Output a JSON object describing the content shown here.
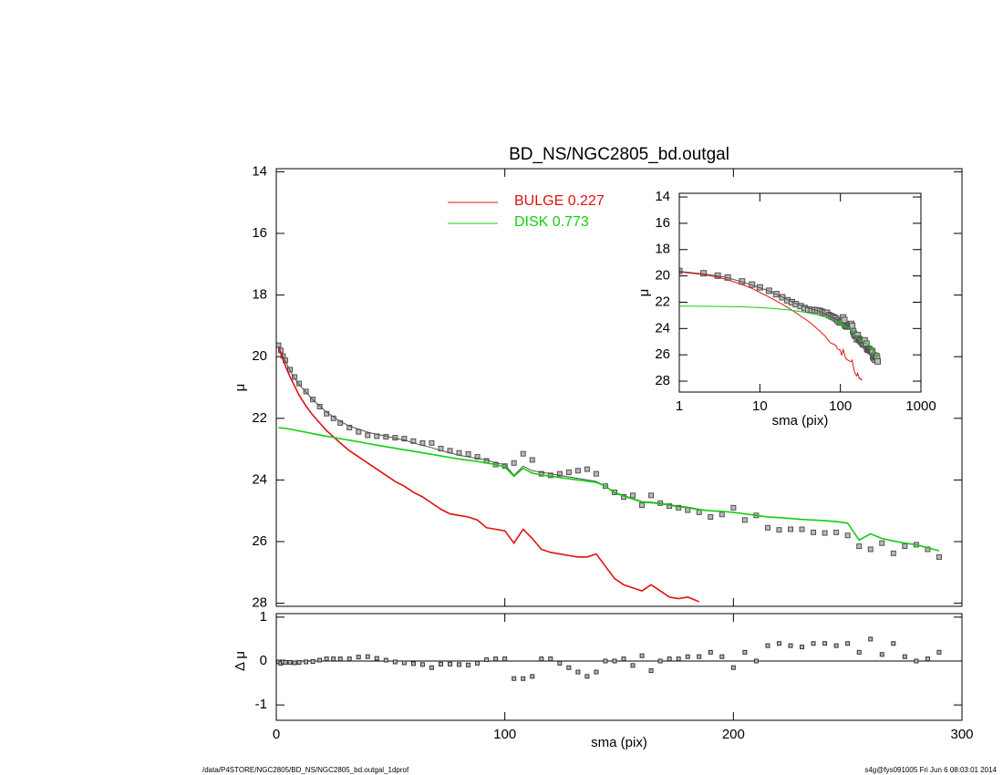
{
  "footer_left": "/data/P4STORE/NGC2805/BD_NS/NGC2805_bd.outgal_1dprof",
  "footer_right": "s4g@fys091005  Fri Jun  6 08:03:01 2014",
  "chart_data": [
    {
      "type": "line",
      "title": "BD_NS/NGC2805_bd.outgal",
      "ylabel": "μ",
      "yreverse": true,
      "legend": "upper-center",
      "xlim": [
        0,
        300
      ],
      "ylim": [
        13.9,
        28.1
      ],
      "yticks": [
        14,
        16,
        18,
        20,
        22,
        24,
        26,
        28
      ],
      "x": [
        1,
        2,
        3,
        4,
        6,
        8,
        10,
        13,
        16,
        19,
        22,
        25,
        28,
        32,
        36,
        40,
        44,
        48,
        52,
        56,
        60,
        64,
        68,
        72,
        76,
        80,
        84,
        88,
        92,
        96,
        100,
        104,
        108,
        112,
        116,
        120,
        124,
        128,
        132,
        136,
        140,
        144,
        148,
        152,
        156,
        160,
        164,
        168,
        172,
        176,
        180,
        185,
        190,
        195,
        200,
        205,
        210,
        215,
        220,
        225,
        230,
        235,
        240,
        245,
        250,
        255,
        260,
        265,
        270,
        275,
        280,
        285,
        290
      ],
      "series": [
        {
          "color": "#505050",
          "marker": "square",
          "values": [
            19.63,
            19.8,
            19.98,
            20.12,
            20.42,
            20.66,
            20.87,
            21.13,
            21.39,
            21.62,
            21.85,
            22.0,
            22.15,
            22.3,
            22.44,
            22.55,
            22.58,
            22.6,
            22.63,
            22.66,
            22.74,
            22.8,
            22.8,
            22.98,
            23.05,
            23.12,
            23.16,
            23.25,
            23.38,
            23.5,
            23.55,
            23.45,
            23.15,
            23.35,
            23.8,
            23.85,
            23.8,
            23.75,
            23.7,
            23.65,
            23.8,
            24.2,
            24.4,
            24.55,
            24.5,
            24.82,
            24.5,
            24.75,
            24.85,
            24.9,
            24.98,
            25.05,
            25.2,
            25.12,
            24.9,
            25.3,
            25.15,
            25.55,
            25.62,
            25.6,
            25.6,
            25.7,
            25.72,
            25.7,
            25.8,
            26.15,
            26.25,
            26.05,
            26.38,
            26.15,
            26.1,
            26.25,
            26.5
          ]
        },
        {
          "color": "#505050",
          "values": [
            19.65,
            19.85,
            20.0,
            20.15,
            20.45,
            20.7,
            20.9,
            21.15,
            21.4,
            21.6,
            21.8,
            21.95,
            22.1,
            22.25,
            22.35,
            22.45,
            22.52,
            22.58,
            22.65,
            22.7,
            22.8,
            22.88,
            22.95,
            23.05,
            23.12,
            23.2,
            23.25,
            23.3,
            23.35,
            23.45,
            23.5,
            23.85,
            23.55,
            23.7,
            23.75,
            23.8,
            23.85,
            23.9,
            23.95,
            24.0,
            24.05,
            24.2,
            24.4,
            24.5,
            24.6,
            24.7,
            24.72,
            24.75,
            24.8,
            24.85,
            24.88,
            24.95,
            25.0,
            25.02,
            25.05,
            25.1,
            25.15,
            25.2,
            25.22,
            25.25,
            25.28,
            25.3,
            25.32,
            25.35,
            25.4,
            25.95,
            25.75,
            25.9,
            25.98,
            26.05,
            26.1,
            26.2,
            26.3
          ]
        },
        {
          "name": "BULGE  0.227",
          "color": "#e01010",
          "values": [
            19.7,
            19.9,
            20.1,
            20.3,
            20.65,
            20.95,
            21.25,
            21.6,
            21.9,
            22.15,
            22.4,
            22.6,
            22.8,
            23.05,
            23.25,
            23.45,
            23.65,
            23.85,
            24.05,
            24.2,
            24.4,
            24.55,
            24.75,
            24.95,
            25.1,
            25.15,
            25.2,
            25.3,
            25.55,
            25.6,
            25.65,
            26.05,
            25.6,
            25.9,
            26.25,
            26.35,
            26.4,
            26.45,
            26.5,
            26.5,
            26.4,
            26.8,
            27.2,
            27.4,
            27.5,
            27.6,
            27.4,
            27.6,
            27.8,
            27.85,
            27.8,
            27.95,
            null,
            null,
            null,
            null,
            null,
            null,
            null,
            null,
            null,
            null,
            null,
            null,
            null,
            null,
            null,
            null,
            null,
            null,
            null,
            null,
            null
          ]
        },
        {
          "name": "DISK  0.773",
          "color": "#10d010",
          "values": [
            22.3,
            22.31,
            22.32,
            22.33,
            22.35,
            22.38,
            22.41,
            22.45,
            22.5,
            22.54,
            22.58,
            22.62,
            22.66,
            22.71,
            22.76,
            22.82,
            22.87,
            22.92,
            22.97,
            23.02,
            23.07,
            23.12,
            23.17,
            23.22,
            23.27,
            23.32,
            23.36,
            23.4,
            23.45,
            23.5,
            23.58,
            23.88,
            23.62,
            23.78,
            23.84,
            23.88,
            23.92,
            23.96,
            24.0,
            24.04,
            24.08,
            24.2,
            24.42,
            24.52,
            24.62,
            24.72,
            24.74,
            24.77,
            24.82,
            24.87,
            24.9,
            24.97,
            25.0,
            25.02,
            25.05,
            25.1,
            25.15,
            25.2,
            25.22,
            25.25,
            25.28,
            25.3,
            25.32,
            25.35,
            25.4,
            25.95,
            25.75,
            25.9,
            25.98,
            26.05,
            26.1,
            26.2,
            26.3
          ]
        }
      ]
    },
    {
      "type": "scatter",
      "xlabel": "sma (pix)",
      "ylabel": "Δ μ",
      "zero_line": true,
      "xlim": [
        0,
        300
      ],
      "xticks": [
        0,
        100,
        200,
        300
      ],
      "ylim": [
        -1.35,
        1.08
      ],
      "yticks": [
        -1,
        0,
        1
      ],
      "values": [
        -0.02,
        -0.05,
        -0.02,
        -0.03,
        -0.03,
        -0.04,
        -0.03,
        -0.02,
        -0.01,
        0.02,
        0.05,
        0.05,
        0.05,
        0.05,
        0.09,
        0.1,
        0.06,
        0.02,
        -0.02,
        -0.04,
        -0.06,
        -0.08,
        -0.15,
        -0.07,
        -0.07,
        -0.08,
        -0.09,
        -0.05,
        0.03,
        0.05,
        0.05,
        -0.4,
        -0.4,
        -0.35,
        0.05,
        0.05,
        -0.05,
        -0.15,
        -0.25,
        -0.35,
        -0.25,
        0,
        0,
        0.05,
        -0.1,
        0.12,
        -0.22,
        0,
        0.05,
        0.05,
        0.1,
        0.1,
        0.2,
        0.1,
        -0.15,
        0.2,
        0,
        0.35,
        0.4,
        0.35,
        0.32,
        0.4,
        0.4,
        0.35,
        0.4,
        0.2,
        0.5,
        0.15,
        0.4,
        0.1,
        0,
        0.05,
        0.2
      ]
    },
    {
      "type": "line",
      "log_x": true,
      "yreverse": true,
      "xlabel": "sma (pix)",
      "ylabel": "μ",
      "xlim": [
        1,
        1000
      ],
      "xticks": [
        1,
        10,
        100,
        1000
      ],
      "ylim": [
        13.72,
        28.83
      ],
      "yticks": [
        14,
        16,
        18,
        20,
        22,
        24,
        26,
        28
      ]
    }
  ]
}
